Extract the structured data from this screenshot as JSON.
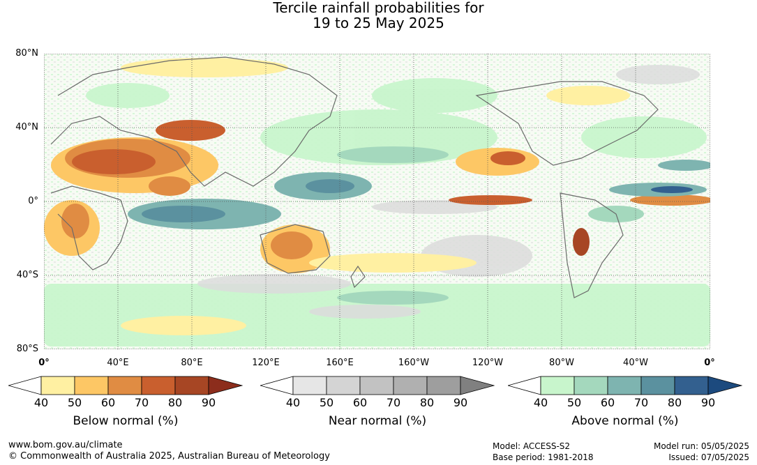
{
  "title_line1": "Tercile rainfall probabilities for",
  "title_line2": "19 to 25 May 2025",
  "map": {
    "lat_labels": [
      "80°N",
      "40°N",
      "0°",
      "40°S",
      "80°S"
    ],
    "lon_labels": [
      "0°",
      "40°E",
      "80°E",
      "120°E",
      "160°E",
      "160°W",
      "120°W",
      "80°W",
      "40°W",
      "0°"
    ]
  },
  "legends": [
    {
      "name": "Below normal (%)",
      "ticks": [
        "40",
        "50",
        "60",
        "70",
        "80",
        "90"
      ],
      "colors": [
        "#ffffff",
        "#fff0a2",
        "#fdc765",
        "#e08c43",
        "#c95f2e",
        "#a74624",
        "#8c2d1c"
      ]
    },
    {
      "name": "Near normal (%)",
      "ticks": [
        "40",
        "50",
        "60",
        "70",
        "80",
        "90"
      ],
      "colors": [
        "#ffffff",
        "#e6e6e6",
        "#d4d4d4",
        "#c2c2c2",
        "#b0b0b0",
        "#9e9e9e",
        "#808080"
      ]
    },
    {
      "name": "Above normal (%)",
      "ticks": [
        "40",
        "50",
        "60",
        "70",
        "80",
        "90"
      ],
      "colors": [
        "#ffffff",
        "#c8f5cc",
        "#a4d8bd",
        "#7eb4b0",
        "#5b919f",
        "#33608f",
        "#1c4a7e"
      ]
    }
  ],
  "footer": {
    "website": "www.bom.gov.au/climate",
    "copyright": "© Commonwealth of Australia 2025, Australian Bureau of Meteorology",
    "model": "Model: ACCESS-S2",
    "base_period": "Base period: 1981-2018",
    "model_run": "Model run: 05/05/2025",
    "issued": "Issued: 07/05/2025"
  }
}
